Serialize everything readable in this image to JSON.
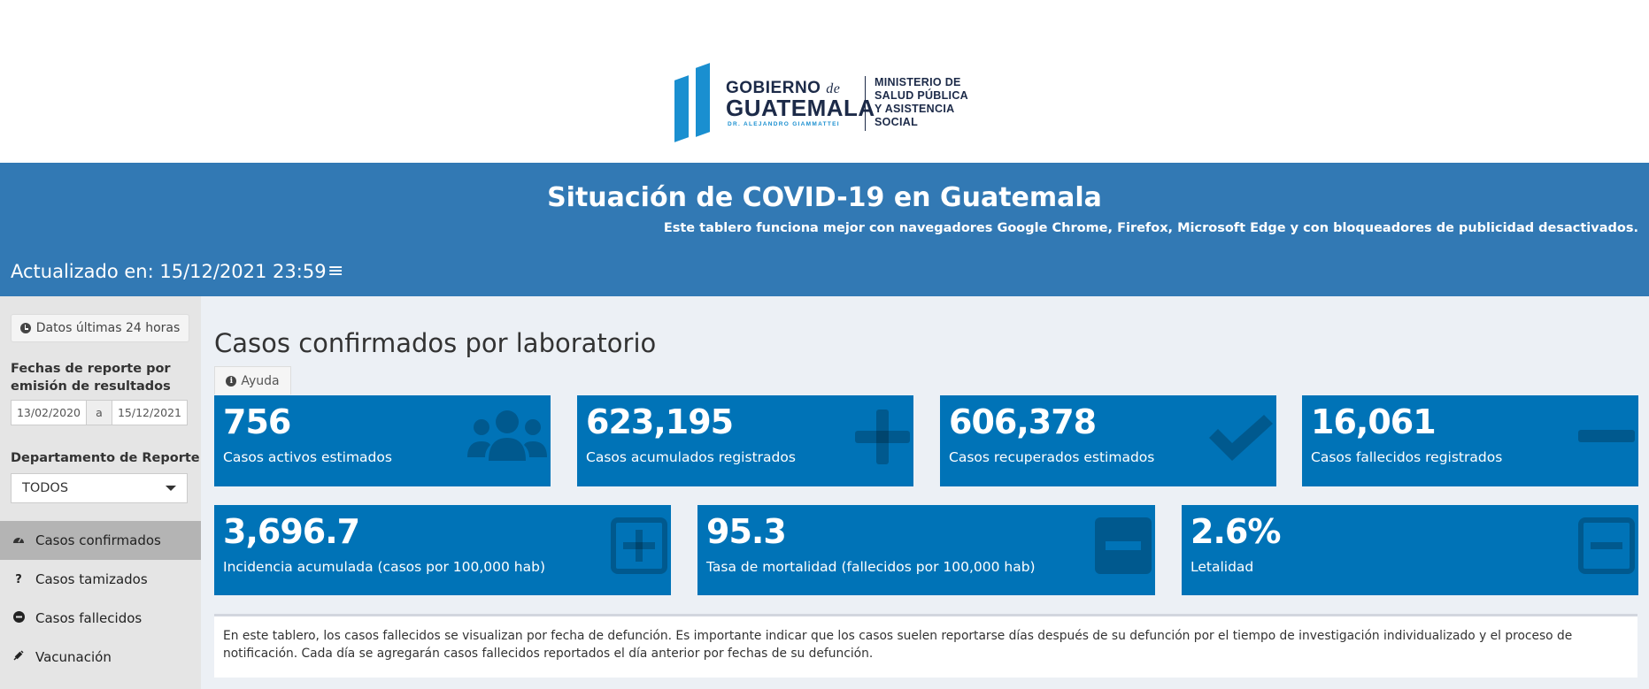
{
  "logo": {
    "gobierno": "GOBIERNO",
    "de": "de",
    "guatemala": "GUATEMALA",
    "dr": "DR. ALEJANDRO GIAMMATTEI",
    "ministerio_lines": [
      "MINISTERIO DE",
      "SALUD PÚBLICA",
      "Y ASISTENCIA",
      "SOCIAL"
    ]
  },
  "banner": {
    "title": "Situación de COVID-19 en Guatemala",
    "subtitle": "Este tablero funciona mejor con navegadores Google Chrome, Firefox, Microsoft Edge y con bloqueadores de publicidad desactivados.",
    "updated": "Actualizado en: 15/12/2021 23:59",
    "menu_icon": "hamburger-icon"
  },
  "sidebar": {
    "btn_24h": "Datos últimas 24 horas",
    "fechas_label": "Fechas de reporte por emisión de resultados",
    "date_from": "13/02/2020",
    "date_sep": "a",
    "date_to": "15/12/2021",
    "departamento_label": "Departamento de Reporte",
    "departamento_value": "TODOS",
    "nav": [
      {
        "label": "Casos confirmados",
        "icon": "dashboard-icon",
        "active": true
      },
      {
        "label": "Casos tamizados",
        "icon": "question-icon",
        "active": false
      },
      {
        "label": "Casos fallecidos",
        "icon": "minus-circle-icon",
        "active": false
      },
      {
        "label": "Vacunación",
        "icon": "syringe-icon",
        "active": false
      }
    ]
  },
  "main": {
    "title": "Casos confirmados por laboratorio",
    "help_tab": "Ayuda",
    "cards_row1": [
      {
        "value": "756",
        "label": "Casos activos estimados",
        "icon": "users-icon"
      },
      {
        "value": "623,195",
        "label": "Casos acumulados registrados",
        "icon": "plus-icon"
      },
      {
        "value": "606,378",
        "label": "Casos recuperados estimados",
        "icon": "check-icon"
      },
      {
        "value": "16,061",
        "label": "Casos fallecidos registrados",
        "icon": "minus-icon"
      }
    ],
    "cards_row2": [
      {
        "value": "3,696.7",
        "label": "Incidencia acumulada (casos por 100,000 hab)",
        "icon": "plus-square-icon"
      },
      {
        "value": "95.3",
        "label": "Tasa de mortalidad (fallecidos por 100,000 hab)",
        "icon": "minus-square-icon"
      },
      {
        "value": "2.6%",
        "label": "Letalidad",
        "icon": "minus-square-outline-icon"
      }
    ],
    "note": "En este tablero, los casos fallecidos se visualizan por fecha de defunción. Es importante indicar que los casos suelen reportarse días después de su defunción por el tiempo de investigación individualizado y el proceso de notificación. Cada día se agregarán casos fallecidos reportados el día anterior por fechas de su defunción."
  },
  "colors": {
    "banner": "#3279b4",
    "card": "#0073b7",
    "logo_blue": "#1a8fd0",
    "logo_navy": "#1c2a48"
  }
}
